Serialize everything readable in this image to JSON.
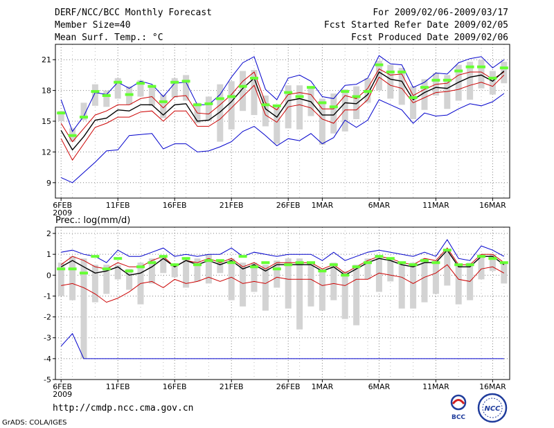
{
  "header": {
    "title": "DERF/NCC/BCC Monthly Forecast",
    "member_size": "Member Size=40",
    "variable": "Mean Surf. Temp.: °C",
    "period": "For 2009/02/06-2009/03/17",
    "refer_date": "Fcst Started Refer Date 2009/02/05",
    "produced_date": "Fcst Produced Date 2009/02/06"
  },
  "footer": {
    "url": "http://cmdp.ncc.cma.gov.cn",
    "grads": "GrADS: COLA/IGES",
    "logo_bcc": "BCC",
    "logo_ncc": "NCC"
  },
  "colors": {
    "max_min": "#0000cc",
    "plus_minus_sd": "#cc0000",
    "mean": "#000000",
    "bar": "#d3d3d3",
    "marker": "#66ff33",
    "grid": "#7f7f7f"
  },
  "chart_data": [
    {
      "type": "line",
      "title": "Mean Surf. Temp.: °C",
      "x": [
        1,
        2,
        3,
        4,
        5,
        6,
        7,
        8,
        9,
        10,
        11,
        12,
        13,
        14,
        15,
        16,
        17,
        18,
        19,
        20,
        21,
        22,
        23,
        24,
        25,
        26,
        27,
        28,
        29,
        30,
        31,
        32,
        33,
        34,
        35,
        36,
        37,
        38,
        39,
        40
      ],
      "x_ticks": [
        {
          "day": 1,
          "label": "6FEB",
          "sublabel": "2009"
        },
        {
          "day": 6,
          "label": "11FEB"
        },
        {
          "day": 11,
          "label": "16FEB"
        },
        {
          "day": 16,
          "label": "21FEB"
        },
        {
          "day": 21,
          "label": "26FEB"
        },
        {
          "day": 24,
          "label": "1MAR"
        },
        {
          "day": 29,
          "label": "6MAR"
        },
        {
          "day": 34,
          "label": "11MAR"
        },
        {
          "day": 39,
          "label": "16MAR"
        }
      ],
      "xlim": [
        0.5,
        40.5
      ],
      "ylim": [
        7.5,
        22.5
      ],
      "y_ticks": [
        9,
        12,
        15,
        18,
        21
      ],
      "grid": true,
      "series": [
        {
          "name": "max",
          "color": "#0000cc",
          "values": [
            17.1,
            14.0,
            15.5,
            17.8,
            17.6,
            18.8,
            18.2,
            18.9,
            18.6,
            17.4,
            18.7,
            18.8,
            16.6,
            16.6,
            17.6,
            19.3,
            20.7,
            21.3,
            18.1,
            17.1,
            19.2,
            19.5,
            18.9,
            17.4,
            17.2,
            18.5,
            18.6,
            19.2,
            21.4,
            20.6,
            20.5,
            18.3,
            18.8,
            19.7,
            19.6,
            20.7,
            21.1,
            21.3,
            20.2,
            21.0
          ]
        },
        {
          "name": "plus_sd",
          "color": "#cc0000",
          "values": [
            14.8,
            13.0,
            14.3,
            15.6,
            16.0,
            16.6,
            16.6,
            17.2,
            17.4,
            16.3,
            17.4,
            17.5,
            15.8,
            15.7,
            16.6,
            17.6,
            18.9,
            19.8,
            16.8,
            16.1,
            17.6,
            17.8,
            17.6,
            16.2,
            16.2,
            17.5,
            17.2,
            18.2,
            20.1,
            19.5,
            19.6,
            17.5,
            18.1,
            18.6,
            18.7,
            19.5,
            19.8,
            19.8,
            19.1,
            19.8
          ]
        },
        {
          "name": "mean",
          "color": "#000000",
          "values": [
            14.1,
            12.2,
            13.5,
            15.1,
            15.3,
            16.1,
            16.0,
            16.6,
            16.6,
            15.6,
            16.6,
            16.7,
            15.0,
            15.1,
            15.9,
            16.9,
            18.2,
            19.2,
            16.2,
            15.4,
            17.0,
            17.2,
            16.9,
            15.6,
            15.6,
            16.8,
            16.7,
            17.6,
            19.8,
            19.1,
            18.9,
            17.1,
            17.8,
            18.3,
            18.2,
            18.8,
            19.3,
            19.5,
            18.9,
            19.9
          ]
        },
        {
          "name": "minus_sd",
          "color": "#cc0000",
          "values": [
            13.3,
            11.2,
            12.8,
            14.4,
            14.8,
            15.4,
            15.4,
            15.9,
            16.0,
            15.0,
            16.0,
            16.0,
            14.5,
            14.5,
            15.2,
            16.3,
            17.4,
            18.5,
            15.6,
            14.9,
            16.4,
            16.6,
            16.3,
            15.2,
            14.8,
            16.1,
            16.1,
            17.1,
            19.3,
            18.5,
            18.2,
            16.8,
            17.3,
            17.8,
            17.9,
            18.1,
            18.5,
            18.8,
            18.4,
            19.5
          ]
        },
        {
          "name": "min",
          "color": "#0000cc",
          "values": [
            9.5,
            9.0,
            10.0,
            11.0,
            12.1,
            12.2,
            13.6,
            13.7,
            13.8,
            12.3,
            12.8,
            12.8,
            12.0,
            12.1,
            12.5,
            13.0,
            14.0,
            14.5,
            13.6,
            12.6,
            13.3,
            13.1,
            13.8,
            12.8,
            13.4,
            15.1,
            14.4,
            15.1,
            17.1,
            16.6,
            16.1,
            14.8,
            15.8,
            15.5,
            15.6,
            16.2,
            16.7,
            16.5,
            16.9,
            17.7
          ]
        }
      ],
      "bars": {
        "name": "observed_range",
        "color": "#d3d3d3",
        "low": [
          15.0,
          13.0,
          15.1,
          16.5,
          16.4,
          17.2,
          16.6,
          17.4,
          16.5,
          15.3,
          17.3,
          17.0,
          14.8,
          15.0,
          13.0,
          14.2,
          16.0,
          15.6,
          14.5,
          12.8,
          14.3,
          14.2,
          15.5,
          12.7,
          13.8,
          14.0,
          15.2,
          16.8,
          18.0,
          17.2,
          16.6,
          15.2,
          16.1,
          17.5,
          16.2,
          17.0,
          17.1,
          18.2,
          17.6,
          18.7
        ],
        "high": [
          16.0,
          14.3,
          16.8,
          18.6,
          18.0,
          19.2,
          18.4,
          19.0,
          18.5,
          17.6,
          19.2,
          19.5,
          16.8,
          17.4,
          18.6,
          18.9,
          19.9,
          20.0,
          17.5,
          16.5,
          18.5,
          18.5,
          18.3,
          17.2,
          17.7,
          18.1,
          18.4,
          19.2,
          20.9,
          20.5,
          20.2,
          18.4,
          19.1,
          19.7,
          19.5,
          20.5,
          20.8,
          21.0,
          19.9,
          20.8
        ]
      },
      "markers": {
        "name": "observation",
        "color": "#66ff33",
        "values": [
          15.8,
          13.6,
          15.4,
          17.9,
          17.5,
          18.8,
          17.6,
          18.7,
          18.4,
          16.9,
          18.8,
          18.9,
          16.6,
          16.7,
          17.2,
          17.4,
          18.4,
          19.2,
          16.6,
          16.5,
          17.8,
          17.4,
          18.3,
          16.8,
          16.4,
          17.9,
          17.4,
          17.9,
          20.5,
          19.8,
          19.8,
          17.3,
          18.3,
          19.0,
          19.0,
          19.9,
          20.3,
          20.3,
          19.2,
          20.2
        ]
      }
    },
    {
      "type": "line",
      "title": "Prec.: log(mm/d)",
      "x": [
        1,
        2,
        3,
        4,
        5,
        6,
        7,
        8,
        9,
        10,
        11,
        12,
        13,
        14,
        15,
        16,
        17,
        18,
        19,
        20,
        21,
        22,
        23,
        24,
        25,
        26,
        27,
        28,
        29,
        30,
        31,
        32,
        33,
        34,
        35,
        36,
        37,
        38,
        39,
        40
      ],
      "x_ticks": [
        {
          "day": 1,
          "label": "6FEB",
          "sublabel": "2009"
        },
        {
          "day": 6,
          "label": "11FEB"
        },
        {
          "day": 11,
          "label": "16FEB"
        },
        {
          "day": 16,
          "label": "21FEB"
        },
        {
          "day": 21,
          "label": "26FEB"
        },
        {
          "day": 24,
          "label": "1MAR"
        },
        {
          "day": 29,
          "label": "6MAR"
        },
        {
          "day": 34,
          "label": "11MAR"
        },
        {
          "day": 39,
          "label": "16MAR"
        }
      ],
      "xlim": [
        0.5,
        40.5
      ],
      "ylim": [
        -5,
        2.3
      ],
      "y_ticks": [
        -5,
        -4,
        -3,
        -2,
        -1,
        0,
        1,
        2
      ],
      "grid": true,
      "series": [
        {
          "name": "max",
          "color": "#0000cc",
          "values": [
            1.1,
            1.2,
            1.0,
            0.9,
            0.6,
            1.2,
            0.9,
            0.9,
            1.1,
            1.3,
            0.9,
            1.0,
            0.9,
            1.0,
            1.0,
            1.3,
            0.9,
            1.1,
            1.0,
            0.9,
            1.0,
            1.0,
            1.0,
            0.7,
            1.1,
            0.7,
            0.9,
            1.1,
            1.2,
            1.1,
            1.0,
            0.9,
            1.1,
            0.9,
            1.7,
            0.8,
            0.7,
            1.4,
            1.2,
            0.9
          ]
        },
        {
          "name": "plus_sd",
          "color": "#cc0000",
          "values": [
            0.5,
            0.9,
            0.7,
            0.4,
            0.3,
            0.6,
            0.4,
            0.4,
            0.7,
            0.9,
            0.4,
            0.7,
            0.6,
            0.8,
            0.6,
            0.8,
            0.4,
            0.6,
            0.3,
            0.6,
            0.6,
            0.6,
            0.6,
            0.3,
            0.5,
            0.1,
            0.4,
            0.7,
            0.9,
            0.8,
            0.6,
            0.5,
            0.8,
            0.7,
            1.3,
            0.5,
            0.5,
            1.0,
            1.0,
            0.6
          ]
        },
        {
          "name": "mean",
          "color": "#000000",
          "values": [
            0.4,
            0.7,
            0.4,
            0.1,
            0.2,
            0.4,
            0.0,
            0.1,
            0.4,
            0.8,
            0.4,
            0.7,
            0.5,
            0.7,
            0.5,
            0.7,
            0.3,
            0.5,
            0.2,
            0.5,
            0.5,
            0.5,
            0.5,
            0.2,
            0.4,
            0.0,
            0.3,
            0.6,
            0.8,
            0.7,
            0.5,
            0.4,
            0.6,
            0.6,
            1.2,
            0.4,
            0.4,
            0.9,
            0.9,
            0.5
          ]
        },
        {
          "name": "minus_sd",
          "color": "#cc0000",
          "values": [
            -0.5,
            -0.4,
            -0.6,
            -0.9,
            -1.3,
            -1.1,
            -0.8,
            -0.4,
            -0.3,
            -0.6,
            -0.2,
            -0.4,
            -0.3,
            -0.1,
            -0.3,
            -0.1,
            -0.4,
            -0.3,
            -0.4,
            -0.1,
            -0.2,
            -0.2,
            -0.2,
            -0.5,
            -0.4,
            -0.5,
            -0.2,
            -0.2,
            0.1,
            0.0,
            -0.1,
            -0.4,
            -0.1,
            0.1,
            0.5,
            -0.2,
            -0.3,
            0.3,
            0.4,
            0.1
          ]
        },
        {
          "name": "min",
          "color": "#0000cc",
          "values": [
            -3.4,
            -2.8,
            -4.0,
            -4.0,
            -4.0,
            -4.0,
            -4.0,
            -4.0,
            -4.0,
            -4.0,
            -4.0,
            -4.0,
            -4.0,
            -4.0,
            -4.0,
            -4.0,
            -4.0,
            -4.0,
            -4.0,
            -4.0,
            -4.0,
            -4.0,
            -4.0,
            -4.0,
            -4.0,
            -4.0,
            -4.0,
            -4.0,
            -4.0,
            -4.0,
            -4.0,
            -4.0,
            -4.0,
            -4.0,
            -4.0,
            -4.0,
            -4.0,
            -4.0,
            -4.0,
            -4.0
          ]
        }
      ],
      "bars": {
        "name": "observed_range",
        "color": "#d3d3d3",
        "low": [
          -1.0,
          -1.2,
          -4.0,
          -1.3,
          -0.9,
          -0.2,
          -0.7,
          -1.4,
          -0.4,
          0.1,
          -0.1,
          -0.6,
          -0.3,
          -0.4,
          0.1,
          -1.2,
          -1.5,
          -0.8,
          -1.7,
          -0.6,
          -1.6,
          -2.6,
          -1.5,
          -1.7,
          -1.2,
          -2.1,
          -2.4,
          -0.2,
          -0.8,
          -0.3,
          -1.6,
          -1.6,
          -1.3,
          -0.9,
          -0.5,
          -1.4,
          -1.2,
          -0.2,
          0.2,
          -0.4
        ],
        "high": [
          0.6,
          0.9,
          0.8,
          0.5,
          0.5,
          0.5,
          0.3,
          0.6,
          0.8,
          0.9,
          0.5,
          0.8,
          0.8,
          1.0,
          0.7,
          0.8,
          0.6,
          0.6,
          0.5,
          0.7,
          0.8,
          0.8,
          0.6,
          0.3,
          0.6,
          0.2,
          0.5,
          0.8,
          0.9,
          0.8,
          0.5,
          0.6,
          0.8,
          0.7,
          1.2,
          0.5,
          0.6,
          1.0,
          1.0,
          0.6
        ]
      },
      "markers": {
        "name": "observation",
        "color": "#66ff33",
        "values": [
          0.3,
          0.3,
          0.1,
          0.9,
          0.3,
          0.8,
          0.2,
          0.4,
          0.6,
          0.9,
          0.5,
          0.8,
          0.5,
          0.7,
          0.7,
          0.6,
          0.9,
          0.4,
          0.6,
          0.3,
          0.5,
          0.6,
          0.6,
          0.2,
          0.5,
          0.0,
          0.4,
          0.6,
          0.9,
          0.8,
          0.6,
          0.5,
          0.7,
          0.6,
          1.2,
          0.5,
          0.5,
          0.9,
          0.8,
          0.6
        ]
      }
    }
  ]
}
